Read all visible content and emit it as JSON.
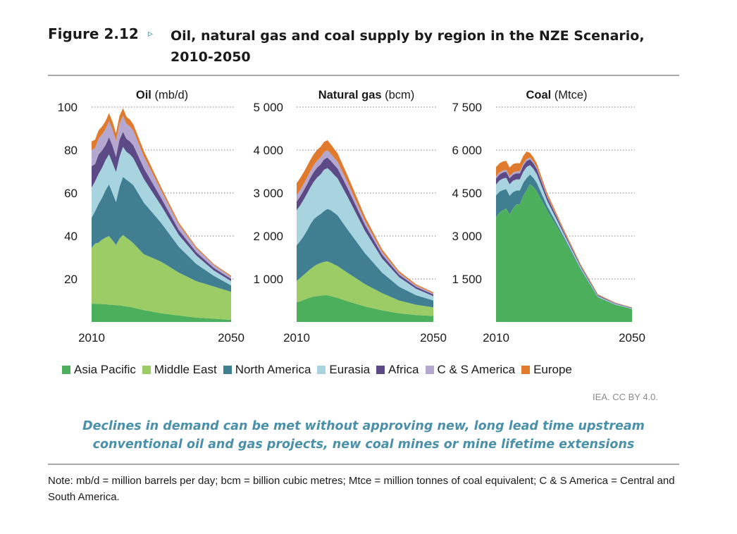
{
  "figure": {
    "label": "Figure 2.12",
    "arrow": "▹",
    "title": "Oil, natural gas and coal supply by region in the NZE Scenario, 2010-2050"
  },
  "colors": {
    "Asia Pacific": "#4caf5c",
    "Middle East": "#9ccc65",
    "North America": "#3f7f91",
    "Eurasia": "#a8d4e0",
    "Africa": "#5b4a86",
    "C & S America": "#b4a8d0",
    "Europe": "#e07b2e"
  },
  "legend": [
    {
      "label": "Asia Pacific",
      "color": "#4caf5c"
    },
    {
      "label": "Middle East",
      "color": "#9ccc65"
    },
    {
      "label": "North America",
      "color": "#3f7f91"
    },
    {
      "label": "Eurasia",
      "color": "#a8d4e0"
    },
    {
      "label": "Africa",
      "color": "#5b4a86"
    },
    {
      "label": "C & S America",
      "color": "#b4a8d0"
    },
    {
      "label": "Europe",
      "color": "#e07b2e"
    }
  ],
  "credit": "IEA. CC BY 4.0.",
  "caption": "Declines in demand can be met without approving new, long lead time upstream conventional oil and gas projects, new coal mines or mine lifetime extensions",
  "note": "Note: mb/d = million barrels per day; bcm = billion cubic metres; Mtce = million tonnes of coal equivalent; C & S America = Central and South America.",
  "chart_data": [
    {
      "type": "area",
      "stacked": true,
      "title_bold": "Oil",
      "title_unit": "(mb/d)",
      "x": [
        2010,
        2011,
        2012,
        2013,
        2014,
        2015,
        2016,
        2017,
        2018,
        2019,
        2020,
        2021,
        2022,
        2025,
        2030,
        2035,
        2040,
        2045,
        2050
      ],
      "xticks": [
        "2010",
        "2050"
      ],
      "ylim": [
        0,
        100
      ],
      "yticks": [
        20,
        40,
        60,
        80,
        100
      ],
      "ytick_labels": [
        "20",
        "40",
        "60",
        "80",
        "100"
      ],
      "series": [
        {
          "name": "Asia Pacific",
          "values": [
            8.5,
            8.5,
            8.4,
            8.3,
            8.3,
            8.0,
            8.0,
            7.8,
            7.8,
            7.5,
            7.2,
            7.0,
            6.6,
            5.5,
            4.0,
            3.0,
            2.0,
            1.5,
            1.0
          ]
        },
        {
          "name": "Middle East",
          "values": [
            26,
            28,
            28.5,
            30,
            31,
            32,
            30,
            28,
            31,
            33,
            32,
            31,
            30,
            26,
            24,
            20,
            17,
            15,
            13
          ]
        },
        {
          "name": "North America",
          "values": [
            14,
            15,
            18,
            19.5,
            22,
            24,
            22,
            20,
            24,
            27,
            27,
            27,
            27,
            24,
            18,
            12,
            8,
            5,
            3
          ]
        },
        {
          "name": "Eurasia",
          "values": [
            14,
            14,
            14,
            14,
            14,
            14,
            14,
            14,
            14,
            14,
            13,
            13,
            12.5,
            11,
            8,
            5.5,
            4,
            2.5,
            2
          ]
        },
        {
          "name": "Africa",
          "values": [
            10,
            8,
            9,
            8,
            7,
            8,
            8,
            7,
            8,
            7,
            6,
            6,
            6,
            5,
            3.5,
            2.3,
            1.5,
            1.2,
            1.0
          ]
        },
        {
          "name": "C & S America",
          "values": [
            7.5,
            7.5,
            7.5,
            7.5,
            7.5,
            7.5,
            7.5,
            7.5,
            7.5,
            7.5,
            7.0,
            7.0,
            6.8,
            5.5,
            3.5,
            2.5,
            1.8,
            1.3,
            1.0
          ]
        },
        {
          "name": "Europe",
          "values": [
            4.0,
            3.8,
            3.8,
            3.7,
            3.7,
            3.7,
            3.7,
            3.6,
            3.6,
            3.5,
            3.3,
            3.2,
            3.0,
            2.5,
            1.5,
            1.0,
            0.7,
            0.5,
            0.5
          ]
        }
      ]
    },
    {
      "type": "area",
      "stacked": true,
      "title_bold": "Natural gas",
      "title_unit": "(bcm)",
      "x": [
        2010,
        2011,
        2012,
        2013,
        2014,
        2015,
        2016,
        2017,
        2018,
        2019,
        2020,
        2021,
        2022,
        2025,
        2030,
        2035,
        2040,
        2045,
        2050
      ],
      "xticks": [
        "2010",
        "2050"
      ],
      "ylim": [
        0,
        5000
      ],
      "yticks": [
        1000,
        2000,
        3000,
        4000,
        5000
      ],
      "ytick_labels": [
        "1 000",
        "2 000",
        "3 000",
        "4 000",
        "5 000"
      ],
      "series": [
        {
          "name": "Asia Pacific",
          "values": [
            460,
            480,
            510,
            540,
            570,
            590,
            600,
            610,
            620,
            620,
            600,
            580,
            560,
            480,
            360,
            270,
            200,
            160,
            140
          ]
        },
        {
          "name": "Middle East",
          "values": [
            500,
            540,
            580,
            620,
            660,
            700,
            740,
            760,
            780,
            790,
            780,
            760,
            740,
            660,
            520,
            400,
            300,
            240,
            200
          ]
        },
        {
          "name": "North America",
          "values": [
            820,
            860,
            900,
            960,
            1040,
            1100,
            1120,
            1140,
            1180,
            1220,
            1220,
            1200,
            1180,
            1000,
            720,
            480,
            320,
            220,
            160
          ]
        },
        {
          "name": "Eurasia",
          "values": [
            820,
            830,
            850,
            860,
            860,
            870,
            900,
            920,
            960,
            950,
            910,
            880,
            860,
            760,
            520,
            330,
            220,
            150,
            100
          ]
        },
        {
          "name": "Africa",
          "values": [
            200,
            205,
            210,
            215,
            220,
            225,
            230,
            235,
            240,
            245,
            240,
            235,
            230,
            200,
            140,
            90,
            60,
            45,
            40
          ]
        },
        {
          "name": "C & S America",
          "values": [
            150,
            152,
            155,
            158,
            160,
            162,
            164,
            166,
            168,
            170,
            165,
            160,
            155,
            130,
            90,
            60,
            40,
            30,
            25
          ]
        },
        {
          "name": "Europe",
          "values": [
            280,
            275,
            270,
            265,
            260,
            255,
            250,
            245,
            240,
            235,
            220,
            210,
            200,
            160,
            100,
            60,
            40,
            30,
            25
          ]
        }
      ]
    },
    {
      "type": "area",
      "stacked": true,
      "title_bold": "Coal",
      "title_unit": "(Mtce)",
      "x": [
        2010,
        2011,
        2012,
        2013,
        2014,
        2015,
        2016,
        2017,
        2018,
        2019,
        2020,
        2021,
        2022,
        2025,
        2030,
        2035,
        2040,
        2045,
        2050
      ],
      "xticks": [
        "2010",
        "2050"
      ],
      "ylim": [
        0,
        7500
      ],
      "yticks": [
        1500,
        3000,
        4500,
        6000,
        7500
      ],
      "ytick_labels": [
        "1 500",
        "3 000",
        "4 500",
        "6 000",
        "7 500"
      ],
      "series": [
        {
          "name": "Asia Pacific",
          "values": [
            3650,
            3800,
            3900,
            3950,
            3750,
            3950,
            4100,
            4100,
            4400,
            4600,
            4800,
            4700,
            4550,
            3900,
            2900,
            1800,
            850,
            600,
            450
          ]
        },
        {
          "name": "Middle East",
          "values": [
            5,
            5,
            5,
            5,
            5,
            5,
            5,
            5,
            5,
            5,
            5,
            5,
            5,
            4,
            3,
            2,
            1,
            1,
            1
          ]
        },
        {
          "name": "North America",
          "values": [
            760,
            740,
            700,
            680,
            650,
            580,
            480,
            480,
            450,
            420,
            340,
            320,
            300,
            150,
            60,
            30,
            15,
            10,
            5
          ]
        },
        {
          "name": "Eurasia",
          "values": [
            380,
            390,
            400,
            400,
            400,
            395,
            390,
            390,
            390,
            385,
            330,
            320,
            300,
            190,
            100,
            60,
            35,
            25,
            20
          ]
        },
        {
          "name": "Africa",
          "values": [
            210,
            210,
            210,
            210,
            210,
            210,
            210,
            210,
            210,
            210,
            200,
            190,
            180,
            130,
            70,
            45,
            30,
            20,
            15
          ]
        },
        {
          "name": "C & S America",
          "values": [
            70,
            70,
            70,
            70,
            70,
            70,
            70,
            70,
            70,
            70,
            65,
            60,
            55,
            40,
            25,
            15,
            10,
            8,
            5
          ]
        },
        {
          "name": "Europe",
          "values": [
            330,
            320,
            315,
            310,
            305,
            300,
            290,
            280,
            270,
            260,
            160,
            150,
            140,
            100,
            60,
            40,
            25,
            15,
            10
          ]
        }
      ]
    }
  ]
}
